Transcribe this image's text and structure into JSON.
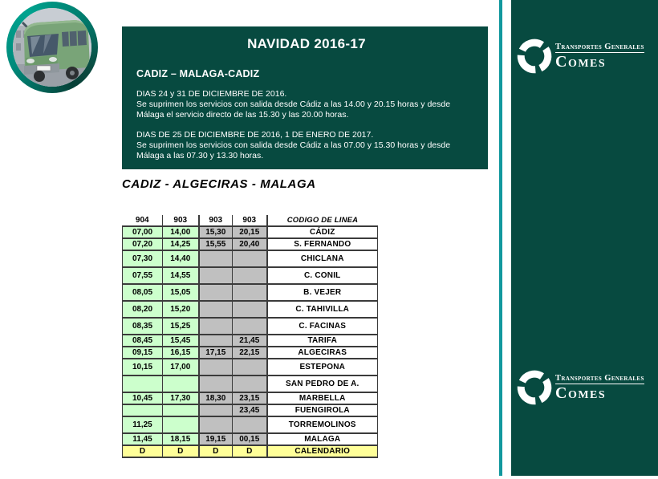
{
  "notice": {
    "title": "NAVIDAD 2016-17",
    "subtitle": "CADIZ – MALAGA-CADIZ",
    "paragraphs": [
      {
        "heading": "DIAS 24 y 31 DE DICIEMBRE DE 2016.",
        "body": "Se suprimen los servicios con salida desde Cádiz a las 14.00 y 20.15 horas y desde Málaga el servicio directo de las 15.30 y las 20.00 horas."
      },
      {
        "heading": "DIAS DE 25 DE DICIEMBRE DE 2016, 1 DE ENERO DE 2017.",
        "body": "Se suprimen los servicios con salida desde Cádiz a las 07.00 y 15.30 horas y desde Málaga a las 07.30 y 13.30 horas."
      }
    ]
  },
  "route_title": "CADIZ - ALGECIRAS - MALAGA",
  "timetable": {
    "columns": [
      "904",
      "903",
      "903",
      "903",
      "CODIGO DE LINEA"
    ],
    "rows": [
      {
        "times": [
          "07,00",
          "14,00",
          "15,30",
          "20,15"
        ],
        "station": "CÁDIZ",
        "tall": false
      },
      {
        "times": [
          "07,20",
          "14,25",
          "15,55",
          "20,40"
        ],
        "station": "S. FERNANDO",
        "tall": false
      },
      {
        "times": [
          "07,30",
          "14,40",
          "",
          ""
        ],
        "station": "CHICLANA",
        "tall": true
      },
      {
        "times": [
          "07,55",
          "14,55",
          "",
          ""
        ],
        "station": "C. CONIL",
        "tall": true
      },
      {
        "times": [
          "08,05",
          "15,05",
          "",
          ""
        ],
        "station": "B. VEJER",
        "tall": true
      },
      {
        "times": [
          "08,20",
          "15,20",
          "",
          ""
        ],
        "station": "C. TAHIVILLA",
        "tall": true
      },
      {
        "times": [
          "08,35",
          "15,25",
          "",
          ""
        ],
        "station": "C. FACINAS",
        "tall": true
      },
      {
        "times": [
          "08,45",
          "15,45",
          "",
          "21,45"
        ],
        "station": "TARIFA",
        "tall": false
      },
      {
        "times": [
          "09,15",
          "16,15",
          "17,15",
          "22,15"
        ],
        "station": "ALGECIRAS",
        "tall": false
      },
      {
        "times": [
          "10,15",
          "17,00",
          "",
          ""
        ],
        "station": "ESTEPONA",
        "tall": true
      },
      {
        "times": [
          "",
          "",
          "",
          ""
        ],
        "station": "SAN PEDRO DE A.",
        "tall": true
      },
      {
        "times": [
          "10,45",
          "17,30",
          "18,30",
          "23,15"
        ],
        "station": "MARBELLA",
        "tall": false
      },
      {
        "times": [
          "",
          "",
          "",
          "23,45"
        ],
        "station": "FUENGIROLA",
        "tall": false
      },
      {
        "times": [
          "11,25",
          "",
          "",
          ""
        ],
        "station": "TORREMOLINOS",
        "tall": true
      },
      {
        "times": [
          "11,45",
          "18,15",
          "19,15",
          "00,15"
        ],
        "station": "MALAGA",
        "tall": false
      },
      {
        "times": [
          "D",
          "D",
          "D",
          "D"
        ],
        "station": "CALENDARIO",
        "tall": false,
        "footer": true
      }
    ]
  },
  "brand": {
    "line1": "Transportes Generales",
    "name": "Comes"
  },
  "colors": {
    "dark_green": "#074a40",
    "teal_accent": "#12989e",
    "cell_green": "#ccffcc",
    "cell_gray": "#c0c0c0",
    "cell_yellow": "#ffff99"
  }
}
